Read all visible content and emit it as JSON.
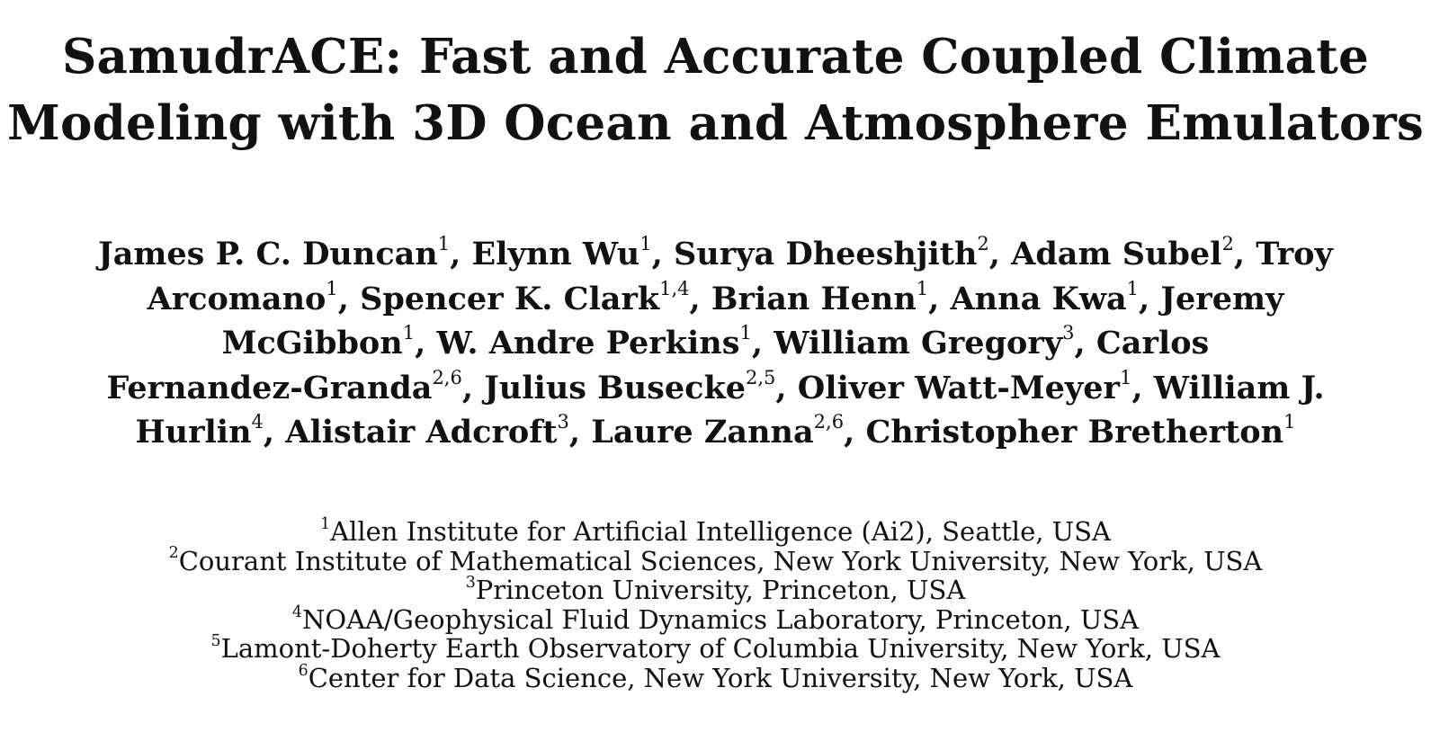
{
  "title": {
    "line1": "SamudrACE: Fast and Accurate Coupled Climate",
    "line2": "Modeling with 3D Ocean and Atmosphere Emulators"
  },
  "authors": [
    [
      {
        "name": "James P. C. Duncan",
        "sup": "1",
        "sep": ", "
      },
      {
        "name": "Elynn Wu",
        "sup": "1",
        "sep": ", "
      },
      {
        "name": "Surya Dheeshjith",
        "sup": "2",
        "sep": ", "
      },
      {
        "name": "Adam Subel",
        "sup": "2",
        "sep": ", "
      },
      {
        "name": "Troy",
        "sup": "",
        "sep": ""
      }
    ],
    [
      {
        "name": "Arcomano",
        "sup": "1",
        "sep": ", "
      },
      {
        "name": "Spencer K. Clark",
        "sup": "1,4",
        "sep": ", "
      },
      {
        "name": "Brian Henn",
        "sup": "1",
        "sep": ", "
      },
      {
        "name": "Anna Kwa",
        "sup": "1",
        "sep": ", "
      },
      {
        "name": "Jeremy",
        "sup": "",
        "sep": ""
      }
    ],
    [
      {
        "name": "McGibbon",
        "sup": "1",
        "sep": ", "
      },
      {
        "name": "W. Andre Perkins",
        "sup": "1",
        "sep": ", "
      },
      {
        "name": "William Gregory",
        "sup": "3",
        "sep": ", "
      },
      {
        "name": "Carlos",
        "sup": "",
        "sep": ""
      }
    ],
    [
      {
        "name": "Fernandez-Granda",
        "sup": "2,6",
        "sep": ", "
      },
      {
        "name": "Julius Busecke",
        "sup": "2,5",
        "sep": ", "
      },
      {
        "name": "Oliver Watt-Meyer",
        "sup": "1",
        "sep": ", "
      },
      {
        "name": "William J.",
        "sup": "",
        "sep": ""
      }
    ],
    [
      {
        "name": "Hurlin",
        "sup": "4",
        "sep": ", "
      },
      {
        "name": "Alistair Adcroft",
        "sup": "3",
        "sep": ", "
      },
      {
        "name": "Laure Zanna",
        "sup": "2,6",
        "sep": ", "
      },
      {
        "name": "Christopher Bretherton",
        "sup": "1",
        "sep": ""
      }
    ]
  ],
  "affiliations": [
    {
      "sup": "1",
      "text": "Allen Institute for Artificial Intelligence (Ai2), Seattle, USA"
    },
    {
      "sup": "2",
      "text": "Courant Institute of Mathematical Sciences, New York University, New York, USA"
    },
    {
      "sup": "3",
      "text": "Princeton University, Princeton, USA"
    },
    {
      "sup": "4",
      "text": "NOAA/Geophysical Fluid Dynamics Laboratory, Princeton, USA"
    },
    {
      "sup": "5",
      "text": "Lamont-Doherty Earth Observatory of Columbia University, New York, USA"
    },
    {
      "sup": "6",
      "text": "Center for Data Science, New York University, New York, USA"
    }
  ]
}
